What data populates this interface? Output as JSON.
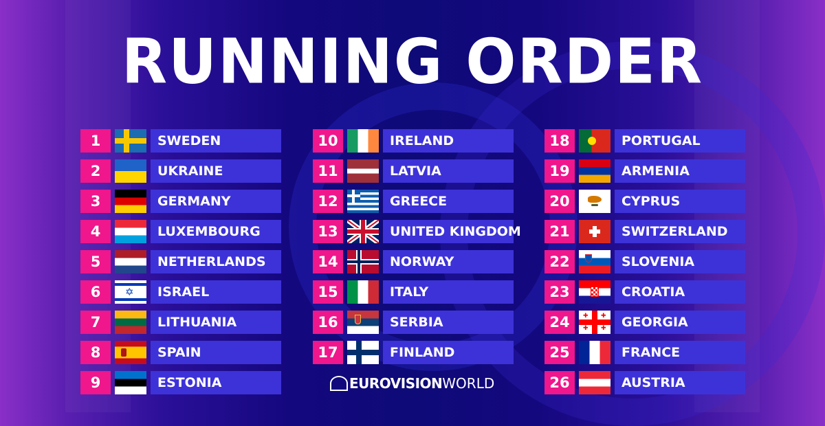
{
  "title": "RUNNING ORDER",
  "logo": {
    "bold": "EUROVISION",
    "light": "WORLD"
  },
  "colors": {
    "number_box": "#f0168c",
    "name_box": "#3d32d8"
  },
  "columns": [
    [
      {
        "n": "1",
        "country": "SWEDEN",
        "flag": "se"
      },
      {
        "n": "2",
        "country": "UKRAINE",
        "flag": "ua"
      },
      {
        "n": "3",
        "country": "GERMANY",
        "flag": "de"
      },
      {
        "n": "4",
        "country": "LUXEMBOURG",
        "flag": "lu"
      },
      {
        "n": "5",
        "country": "NETHERLANDS",
        "flag": "nl"
      },
      {
        "n": "6",
        "country": "ISRAEL",
        "flag": "il"
      },
      {
        "n": "7",
        "country": "LITHUANIA",
        "flag": "lt"
      },
      {
        "n": "8",
        "country": "SPAIN",
        "flag": "es"
      },
      {
        "n": "9",
        "country": "ESTONIA",
        "flag": "ee"
      }
    ],
    [
      {
        "n": "10",
        "country": "IRELAND",
        "flag": "ie"
      },
      {
        "n": "11",
        "country": "LATVIA",
        "flag": "lv"
      },
      {
        "n": "12",
        "country": "GREECE",
        "flag": "gr"
      },
      {
        "n": "13",
        "country": "UNITED KINGDOM",
        "flag": "gb"
      },
      {
        "n": "14",
        "country": "NORWAY",
        "flag": "no"
      },
      {
        "n": "15",
        "country": "ITALY",
        "flag": "it"
      },
      {
        "n": "16",
        "country": "SERBIA",
        "flag": "rs"
      },
      {
        "n": "17",
        "country": "FINLAND",
        "flag": "fi"
      }
    ],
    [
      {
        "n": "18",
        "country": "PORTUGAL",
        "flag": "pt"
      },
      {
        "n": "19",
        "country": "ARMENIA",
        "flag": "am"
      },
      {
        "n": "20",
        "country": "CYPRUS",
        "flag": "cy"
      },
      {
        "n": "21",
        "country": "SWITZERLAND",
        "flag": "ch"
      },
      {
        "n": "22",
        "country": "SLOVENIA",
        "flag": "si"
      },
      {
        "n": "23",
        "country": "CROATIA",
        "flag": "hr"
      },
      {
        "n": "24",
        "country": "GEORGIA",
        "flag": "ge"
      },
      {
        "n": "25",
        "country": "FRANCE",
        "flag": "fr"
      },
      {
        "n": "26",
        "country": "AUSTRIA",
        "flag": "at"
      }
    ]
  ]
}
